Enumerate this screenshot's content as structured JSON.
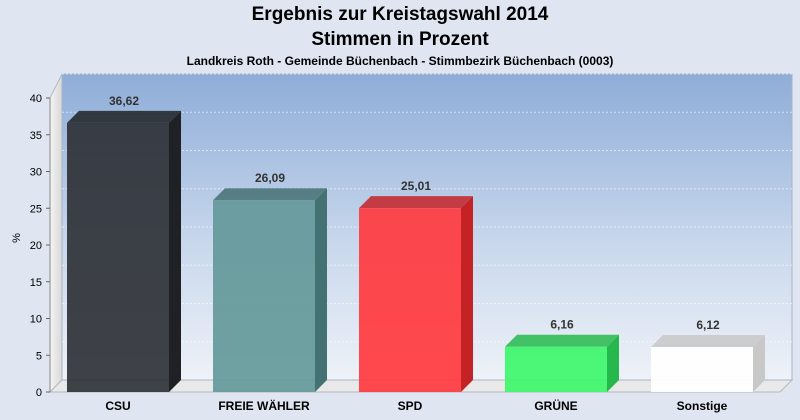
{
  "header": {
    "title_line1": "Ergebnis zur Kreistagswahl 2014",
    "title_line2": "Stimmen in Prozent",
    "subtitle": "Landkreis Roth - Gemeinde Büchenbach - Stimmbezirk Büchenbach (0003)"
  },
  "chart_data": {
    "type": "bar",
    "title": "Ergebnis zur Kreistagswahl 2014 / Stimmen in Prozent",
    "subtitle": "Landkreis Roth - Gemeinde Büchenbach - Stimmbezirk Büchenbach (0003)",
    "ylabel": "%",
    "xlabel": "",
    "ylim": [
      0,
      40
    ],
    "yticks": [
      0,
      5,
      10,
      15,
      20,
      25,
      30,
      35,
      40
    ],
    "grid": true,
    "categories": [
      "CSU",
      "FREIE WÄHLER",
      "SPD",
      "GRÜNE",
      "Sonstige"
    ],
    "values": [
      36.62,
      26.09,
      25.01,
      6.16,
      6.12
    ],
    "value_labels": [
      "36,62",
      "26,09",
      "25,01",
      "6,16",
      "6,12"
    ],
    "colors": [
      "#2f3237",
      "#64999a",
      "#ff3a3f",
      "#3ef66a",
      "#ffffff"
    ],
    "side_colors": [
      "#1f2124",
      "#447172",
      "#c52226",
      "#26b84c",
      "#c8c8c8"
    ]
  }
}
